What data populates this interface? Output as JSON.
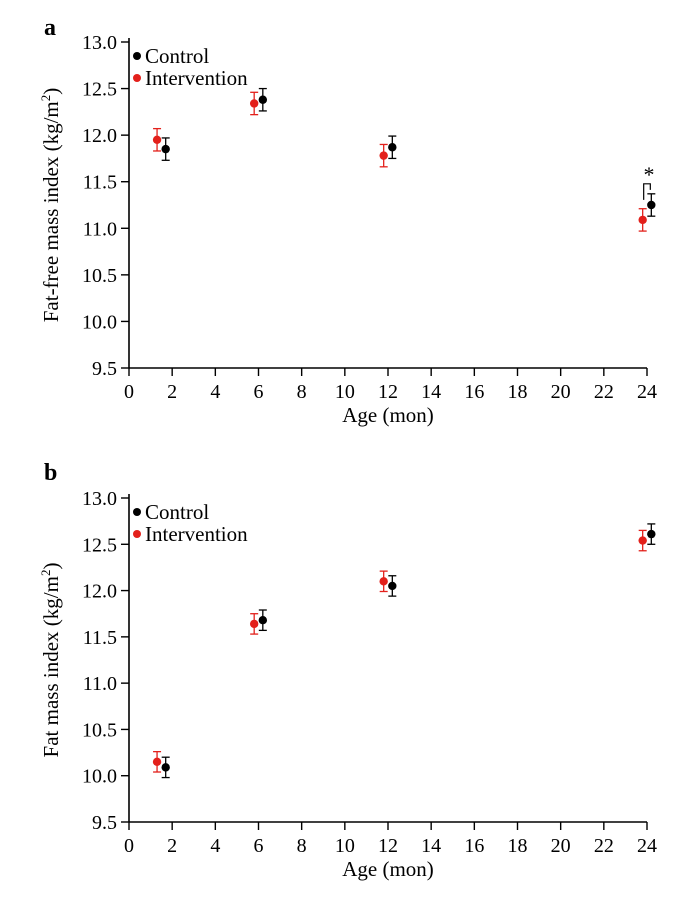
{
  "colors": {
    "control": "#000000",
    "intervention": "#e3201b"
  },
  "chart_data": [
    {
      "type": "scatter",
      "panel_label": "a",
      "xlabel": "Age (mon)",
      "ylabel": "Fat-free mass index (kg/m",
      "ylabel_sup": "2",
      "ylabel_close": ")",
      "xlim": [
        0,
        24
      ],
      "ylim": [
        9.5,
        13.0
      ],
      "xticks": [
        0,
        2,
        4,
        6,
        8,
        10,
        12,
        14,
        16,
        18,
        20,
        22,
        24
      ],
      "yticks": [
        "9.5",
        "10.0",
        "10.5",
        "11.0",
        "11.5",
        "12.0",
        "12.5",
        "13.0"
      ],
      "legend_position": "top-left",
      "series": [
        {
          "name": "Control",
          "color": "#000000",
          "points": [
            {
              "x": 1.7,
              "y": 11.85,
              "err": 0.12
            },
            {
              "x": 6.2,
              "y": 12.38,
              "err": 0.12
            },
            {
              "x": 12.2,
              "y": 11.87,
              "err": 0.12
            },
            {
              "x": 24.2,
              "y": 11.25,
              "err": 0.12
            }
          ]
        },
        {
          "name": "Intervention",
          "color": "#e3201b",
          "points": [
            {
              "x": 1.3,
              "y": 11.95,
              "err": 0.12
            },
            {
              "x": 5.8,
              "y": 12.34,
              "err": 0.12
            },
            {
              "x": 11.8,
              "y": 11.78,
              "err": 0.12
            },
            {
              "x": 23.8,
              "y": 11.09,
              "err": 0.12
            }
          ]
        }
      ],
      "annotations": [
        {
          "text": "*",
          "x": 24.0
        }
      ]
    },
    {
      "type": "scatter",
      "panel_label": "b",
      "xlabel": "Age (mon)",
      "ylabel": "Fat mass index (kg/m",
      "ylabel_sup": "2",
      "ylabel_close": ")",
      "xlim": [
        0,
        24
      ],
      "ylim": [
        9.5,
        13.0
      ],
      "xticks": [
        0,
        2,
        4,
        6,
        8,
        10,
        12,
        14,
        16,
        18,
        20,
        22,
        24
      ],
      "yticks": [
        "9.5",
        "10.0",
        "10.5",
        "11.0",
        "11.5",
        "12.0",
        "12.5",
        "13.0"
      ],
      "legend_position": "top-left",
      "series": [
        {
          "name": "Control",
          "color": "#000000",
          "points": [
            {
              "x": 1.7,
              "y": 10.09,
              "err": 0.11
            },
            {
              "x": 6.2,
              "y": 11.68,
              "err": 0.11
            },
            {
              "x": 12.2,
              "y": 12.05,
              "err": 0.11
            },
            {
              "x": 24.2,
              "y": 12.61,
              "err": 0.11
            }
          ]
        },
        {
          "name": "Intervention",
          "color": "#e3201b",
          "points": [
            {
              "x": 1.3,
              "y": 10.15,
              "err": 0.11
            },
            {
              "x": 5.8,
              "y": 11.64,
              "err": 0.11
            },
            {
              "x": 11.8,
              "y": 12.1,
              "err": 0.11
            },
            {
              "x": 23.8,
              "y": 12.54,
              "err": 0.11
            }
          ]
        }
      ],
      "annotations": []
    }
  ]
}
